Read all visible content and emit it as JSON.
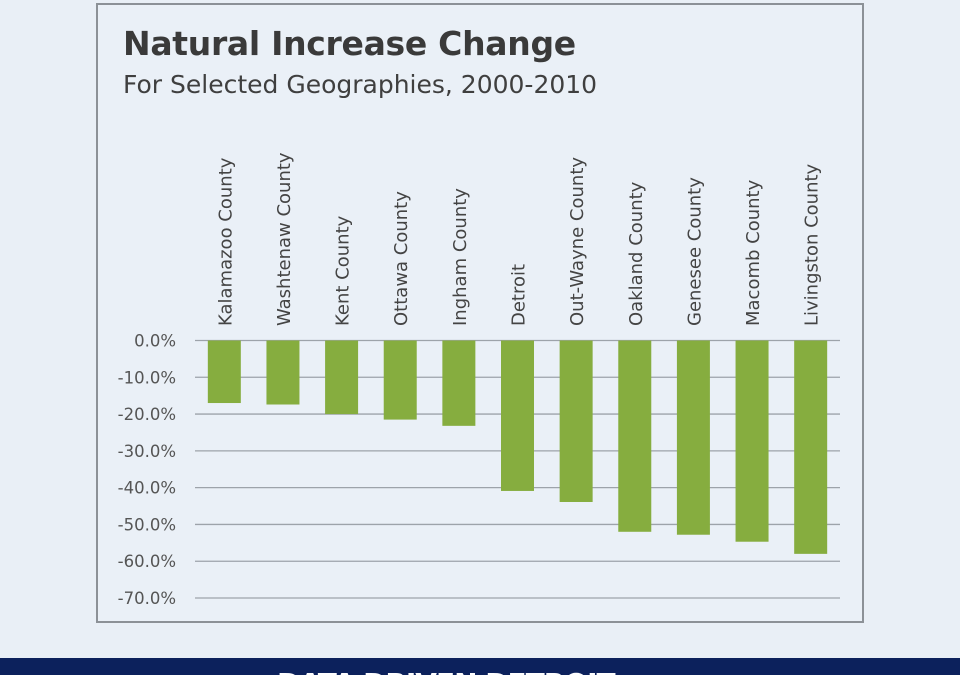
{
  "chart_data": {
    "type": "bar",
    "title": "Natural Increase Change",
    "subtitle": "For Selected Geographies, 2000-2010",
    "categories": [
      "Kalamazoo County",
      "Washtenaw County",
      "Kent County",
      "Ottawa County",
      "Ingham County",
      "Detroit",
      "Out-Wayne County",
      "Oakland County",
      "Genesee County",
      "Macomb County",
      "Livingston County"
    ],
    "values": [
      -17.0,
      -17.4,
      -20.0,
      -21.5,
      -23.2,
      -40.9,
      -43.9,
      -52.0,
      -52.8,
      -54.7,
      -58.0
    ],
    "ylim": [
      -70,
      0
    ],
    "yticks": [
      "0.0%",
      "-10.0%",
      "-20.0%",
      "-30.0%",
      "-40.0%",
      "-50.0%",
      "-60.0%",
      "-70.0%"
    ],
    "ytick_values": [
      0,
      -10,
      -20,
      -30,
      -40,
      -50,
      -60,
      -70
    ],
    "grid": true,
    "category_label_position": "top, rotated vertical",
    "bar_color": "#86ad3f",
    "xlabel": "",
    "ylabel": ""
  },
  "banner": {
    "text": "DATA DRIVEN DETROIT",
    "color": "#0c215c"
  }
}
